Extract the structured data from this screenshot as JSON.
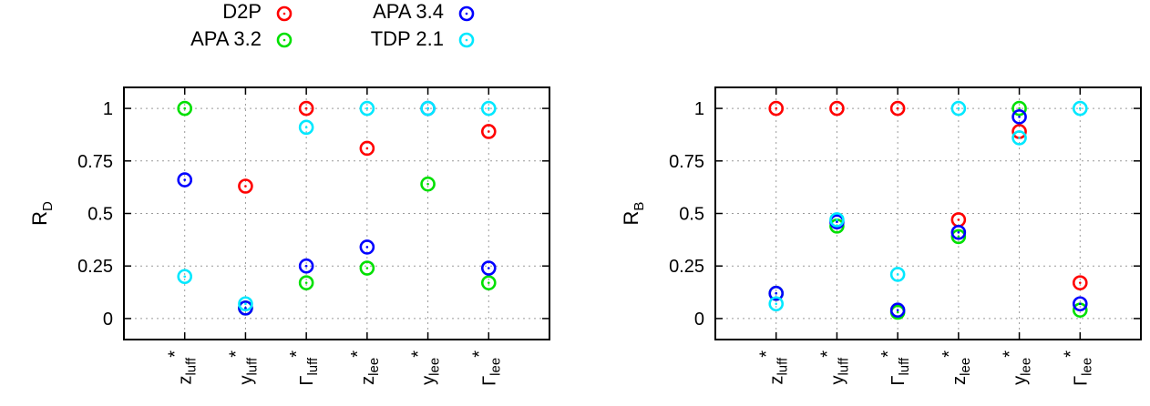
{
  "legend": [
    {
      "name": "D2P",
      "color": "#ff0000"
    },
    {
      "name": "APA 3.2",
      "color": "#00e000"
    },
    {
      "name": "APA 3.4",
      "color": "#0000ff"
    },
    {
      "name": "TDP 2.1",
      "color": "#00e8ff"
    }
  ],
  "chart_data": [
    {
      "type": "scatter",
      "ylabel": "R",
      "ylabel_sub": "D",
      "categories": [
        {
          "base": "z",
          "sub": "luff",
          "sup": "*"
        },
        {
          "base": "y",
          "sub": "luff",
          "sup": "*"
        },
        {
          "base": "Γ",
          "sub": "luff",
          "sup": "*"
        },
        {
          "base": "z",
          "sub": "lee",
          "sup": "*"
        },
        {
          "base": "y",
          "sub": "lee",
          "sup": "*"
        },
        {
          "base": "Γ",
          "sub": "lee",
          "sup": "*"
        }
      ],
      "ylim": [
        -0.1,
        1.1
      ],
      "yticks": [
        "0",
        "0.25",
        "0.5",
        "0.75",
        "1"
      ],
      "grid": true,
      "series": [
        {
          "name": "D2P",
          "values": [
            null,
            0.63,
            1.0,
            0.81,
            null,
            0.89
          ]
        },
        {
          "name": "APA 3.2",
          "values": [
            1.0,
            0.05,
            0.17,
            0.24,
            0.64,
            0.17
          ]
        },
        {
          "name": "APA 3.4",
          "values": [
            0.66,
            0.05,
            0.25,
            0.34,
            1.0,
            0.24
          ]
        },
        {
          "name": "TDP 2.1",
          "values": [
            0.2,
            0.07,
            0.91,
            1.0,
            1.0,
            1.0
          ]
        }
      ]
    },
    {
      "type": "scatter",
      "ylabel": "R",
      "ylabel_sub": "B",
      "categories": [
        {
          "base": "z",
          "sub": "luff",
          "sup": "*"
        },
        {
          "base": "y",
          "sub": "luff",
          "sup": "*"
        },
        {
          "base": "Γ",
          "sub": "luff",
          "sup": "*"
        },
        {
          "base": "z",
          "sub": "lee",
          "sup": "*"
        },
        {
          "base": "y",
          "sub": "lee",
          "sup": "*"
        },
        {
          "base": "Γ",
          "sub": "lee",
          "sup": "*"
        }
      ],
      "ylim": [
        -0.1,
        1.1
      ],
      "yticks": [
        "0",
        "0.25",
        "0.5",
        "0.75",
        "1"
      ],
      "grid": true,
      "series": [
        {
          "name": "D2P",
          "values": [
            1.0,
            1.0,
            1.0,
            0.47,
            0.89,
            0.17
          ]
        },
        {
          "name": "APA 3.2",
          "values": [
            0.12,
            0.44,
            0.03,
            0.39,
            1.0,
            0.04
          ]
        },
        {
          "name": "APA 3.4",
          "values": [
            0.12,
            0.46,
            0.04,
            0.41,
            0.96,
            0.07
          ]
        },
        {
          "name": "TDP 2.1",
          "values": [
            0.07,
            0.47,
            0.21,
            1.0,
            0.86,
            1.0
          ]
        }
      ]
    }
  ]
}
